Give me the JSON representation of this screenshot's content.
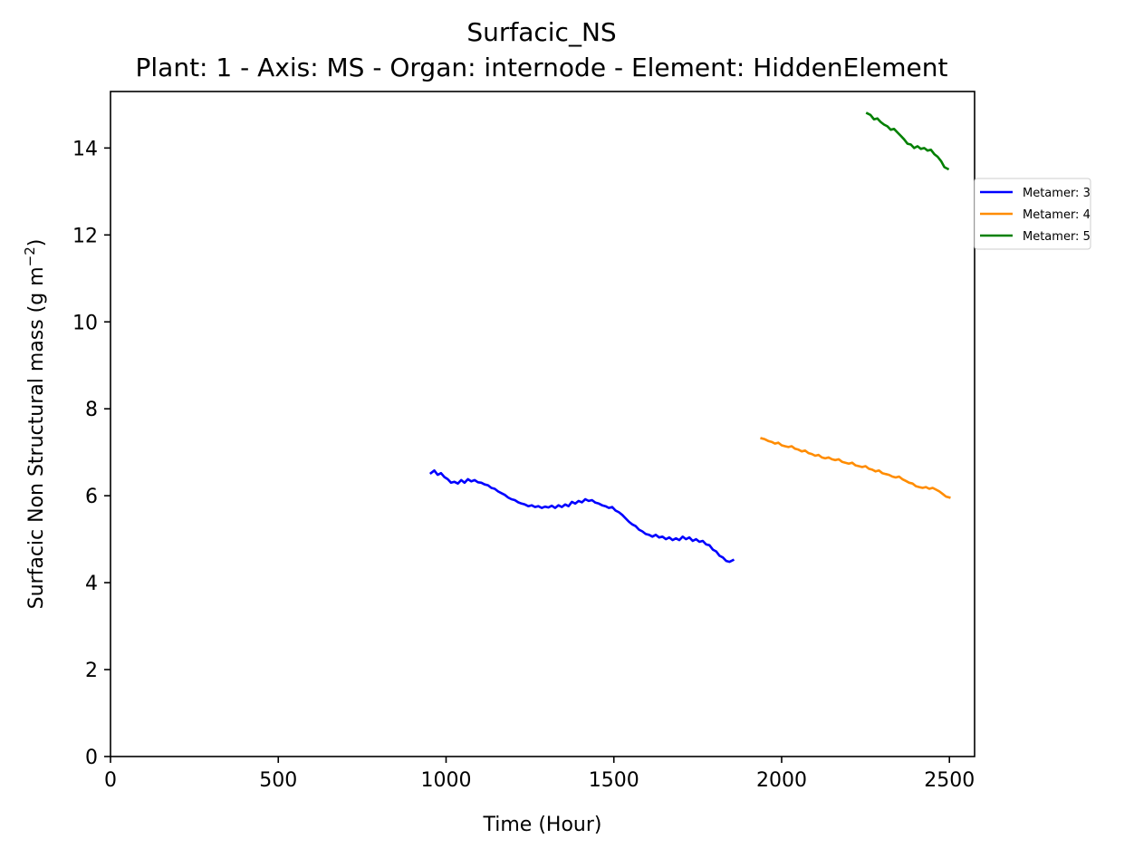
{
  "chart_data": {
    "type": "line",
    "title": "Surfacic_NS",
    "subtitle": "Plant: 1 - Axis: MS - Organ: internode - Element: HiddenElement",
    "xlabel": "Time (Hour)",
    "ylabel_main": "Surfacic Non Structural mass (g m",
    "ylabel_sup": "−2",
    "ylabel_close": ")",
    "xlim": [
      0,
      2575
    ],
    "ylim": [
      0,
      15.3
    ],
    "x_ticks": [
      0,
      500,
      1000,
      1500,
      2000,
      2500
    ],
    "y_ticks": [
      0,
      2,
      4,
      6,
      8,
      10,
      12,
      14
    ],
    "grid": false,
    "legend_placement": "outside-right-top",
    "series": [
      {
        "name": "Metamer: 3",
        "color": "#0000ff",
        "x": [
          955,
          965,
          975,
          985,
          995,
          1005,
          1015,
          1025,
          1035,
          1045,
          1055,
          1065,
          1075,
          1085,
          1095,
          1105,
          1115,
          1125,
          1135,
          1145,
          1155,
          1165,
          1175,
          1185,
          1195,
          1205,
          1215,
          1225,
          1235,
          1245,
          1255,
          1265,
          1275,
          1285,
          1295,
          1305,
          1315,
          1325,
          1335,
          1345,
          1355,
          1365,
          1375,
          1385,
          1395,
          1405,
          1415,
          1425,
          1435,
          1445,
          1455,
          1465,
          1475,
          1485,
          1495,
          1505,
          1515,
          1525,
          1535,
          1545,
          1555,
          1565,
          1575,
          1585,
          1595,
          1605,
          1615,
          1625,
          1635,
          1645,
          1655,
          1665,
          1675,
          1685,
          1695,
          1705,
          1715,
          1725,
          1735,
          1745,
          1755,
          1765,
          1775,
          1785,
          1795,
          1805,
          1815,
          1825,
          1835,
          1845,
          1855
        ],
        "values": [
          6.52,
          6.58,
          6.48,
          6.52,
          6.43,
          6.38,
          6.3,
          6.32,
          6.28,
          6.36,
          6.3,
          6.38,
          6.33,
          6.36,
          6.31,
          6.3,
          6.26,
          6.24,
          6.18,
          6.16,
          6.1,
          6.06,
          6.02,
          5.96,
          5.92,
          5.9,
          5.85,
          5.82,
          5.8,
          5.76,
          5.78,
          5.74,
          5.76,
          5.72,
          5.75,
          5.73,
          5.77,
          5.72,
          5.78,
          5.74,
          5.8,
          5.76,
          5.86,
          5.82,
          5.88,
          5.85,
          5.92,
          5.88,
          5.9,
          5.84,
          5.82,
          5.78,
          5.76,
          5.72,
          5.74,
          5.66,
          5.62,
          5.56,
          5.48,
          5.4,
          5.34,
          5.3,
          5.22,
          5.18,
          5.12,
          5.1,
          5.06,
          5.1,
          5.04,
          5.06,
          5.0,
          5.04,
          4.98,
          5.02,
          4.98,
          5.06,
          5.0,
          5.04,
          4.96,
          5.0,
          4.94,
          4.96,
          4.88,
          4.86,
          4.76,
          4.72,
          4.62,
          4.58,
          4.5,
          4.48,
          4.52
        ]
      },
      {
        "name": "Metamer: 4",
        "color": "#ff8c00",
        "x": [
          1940,
          1950,
          1960,
          1970,
          1980,
          1990,
          2000,
          2010,
          2020,
          2030,
          2040,
          2050,
          2060,
          2070,
          2080,
          2090,
          2100,
          2110,
          2120,
          2130,
          2140,
          2150,
          2160,
          2170,
          2180,
          2190,
          2200,
          2210,
          2220,
          2230,
          2240,
          2250,
          2260,
          2270,
          2280,
          2290,
          2300,
          2310,
          2320,
          2330,
          2340,
          2350,
          2360,
          2370,
          2380,
          2390,
          2400,
          2410,
          2420,
          2430,
          2440,
          2450,
          2460,
          2470,
          2480,
          2490,
          2500
        ],
        "values": [
          7.32,
          7.3,
          7.26,
          7.24,
          7.2,
          7.22,
          7.16,
          7.14,
          7.12,
          7.14,
          7.08,
          7.06,
          7.02,
          7.04,
          6.98,
          6.96,
          6.92,
          6.94,
          6.88,
          6.86,
          6.88,
          6.84,
          6.82,
          6.84,
          6.78,
          6.76,
          6.74,
          6.76,
          6.7,
          6.68,
          6.66,
          6.68,
          6.62,
          6.6,
          6.56,
          6.58,
          6.52,
          6.5,
          6.48,
          6.44,
          6.42,
          6.44,
          6.38,
          6.34,
          6.3,
          6.28,
          6.22,
          6.2,
          6.18,
          6.2,
          6.16,
          6.18,
          6.14,
          6.1,
          6.04,
          5.98,
          5.96
        ]
      },
      {
        "name": "Metamer: 5",
        "color": "#008000",
        "x": [
          2255,
          2265,
          2275,
          2285,
          2295,
          2305,
          2315,
          2325,
          2335,
          2345,
          2355,
          2365,
          2375,
          2385,
          2395,
          2405,
          2415,
          2425,
          2435,
          2445,
          2455,
          2465,
          2475,
          2485,
          2495
        ],
        "values": [
          14.8,
          14.76,
          14.66,
          14.68,
          14.6,
          14.54,
          14.5,
          14.42,
          14.44,
          14.36,
          14.28,
          14.2,
          14.1,
          14.08,
          14.0,
          14.04,
          13.98,
          14.0,
          13.94,
          13.96,
          13.86,
          13.8,
          13.7,
          13.56,
          13.52
        ]
      }
    ]
  }
}
